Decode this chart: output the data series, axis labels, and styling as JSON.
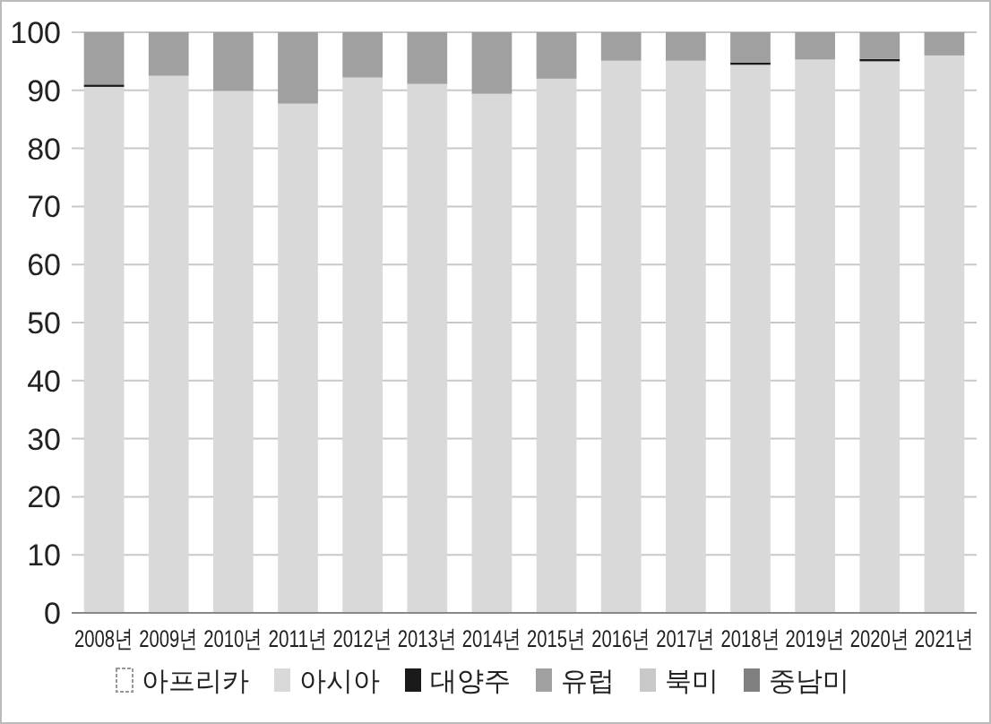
{
  "chart_data": {
    "type": "bar",
    "stacked": true,
    "categories": [
      "2008년",
      "2009년",
      "2010년",
      "2011년",
      "2012년",
      "2013년",
      "2014년",
      "2015년",
      "2016년",
      "2017년",
      "2018년",
      "2019년",
      "2020년",
      "2021년"
    ],
    "series": [
      {
        "name": "아프리카",
        "color": "#ffffff",
        "values": [
          0,
          0,
          0,
          0,
          0,
          0,
          0,
          0,
          0,
          0,
          0,
          0,
          0,
          0
        ]
      },
      {
        "name": "아시아",
        "color": "#d9d9d9",
        "values": [
          90.6,
          92.5,
          89.9,
          87.7,
          92.2,
          91.1,
          89.4,
          92.0,
          95.1,
          95.1,
          94.4,
          95.3,
          95.0,
          96.0
        ]
      },
      {
        "name": "대양주",
        "color": "#1a1a1a",
        "values": [
          0.4,
          0,
          0,
          0,
          0,
          0,
          0,
          0,
          0,
          0,
          0.4,
          0,
          0.4,
          0
        ]
      },
      {
        "name": "유럽",
        "color": "#a0a0a0",
        "values": [
          9.0,
          7.5,
          10.1,
          12.3,
          7.8,
          8.9,
          10.6,
          8.0,
          4.9,
          4.9,
          5.2,
          4.7,
          4.6,
          4.0
        ]
      },
      {
        "name": "북미",
        "color": "#c8c8c8",
        "values": [
          0,
          0,
          0,
          0,
          0,
          0,
          0,
          0,
          0,
          0,
          0,
          0,
          0,
          0
        ]
      },
      {
        "name": "중남미",
        "color": "#808080",
        "values": [
          0,
          0,
          0,
          0,
          0,
          0,
          0,
          0,
          0,
          0,
          0,
          0,
          0,
          0
        ]
      }
    ],
    "ylim": [
      0,
      100
    ],
    "yticks": [
      0,
      10,
      20,
      30,
      40,
      50,
      60,
      70,
      80,
      90,
      100
    ],
    "grid": "y",
    "legend": "bottom"
  }
}
